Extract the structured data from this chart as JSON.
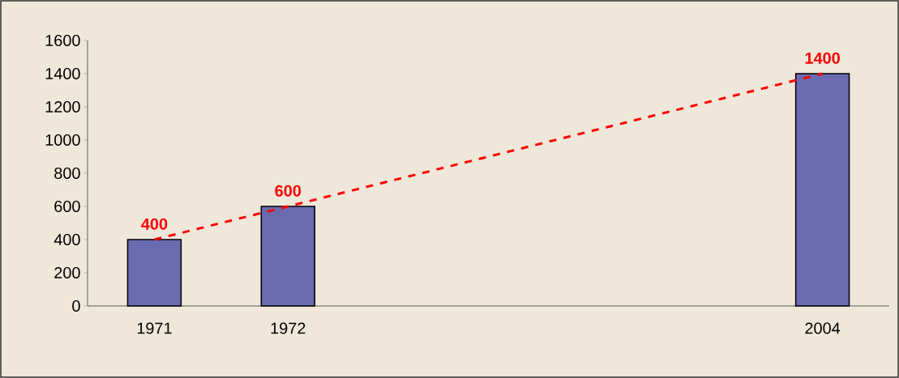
{
  "chart_data": {
    "type": "bar",
    "categories": [
      "1971",
      "1972",
      null,
      null,
      null,
      "2004"
    ],
    "series": [
      {
        "color": "#6b6bb0",
        "values": [
          400,
          600,
          null,
          null,
          null,
          1400
        ]
      },
      {
        "type": "line",
        "color": "#ff0000",
        "line_style": "dashed",
        "marker": "none",
        "values": [
          400,
          600,
          null,
          null,
          null,
          1400
        ],
        "value_labels": [
          "400",
          "600",
          null,
          null,
          null,
          "1400"
        ]
      }
    ],
    "ylim": [
      0,
      1600
    ],
    "yticks": [
      0,
      200,
      400,
      600,
      800,
      1000,
      1200,
      1400,
      1600
    ],
    "grid": false
  }
}
